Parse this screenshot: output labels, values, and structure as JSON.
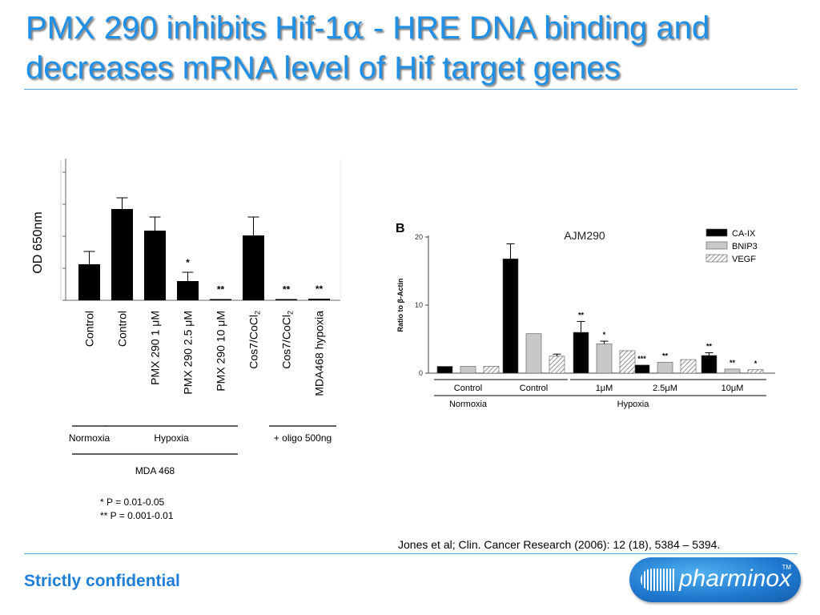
{
  "slide": {
    "title_part1": "PMX 290 inhibits Hif-1",
    "title_alpha": "α",
    "title_part2": " - HRE DNA binding and decreases mRNA level of Hif target genes",
    "citation": "Jones et al; Clin. Cancer Research (2006): 12 (18), 5384 – 5394.",
    "footer": "Strictly confidential",
    "logo_text": "pharminox",
    "logo_tm": "TM",
    "colors": {
      "title": "#1e90e8",
      "footer": "#1e7ed8",
      "rule": "#5aa9e6",
      "bar": "#000000"
    }
  },
  "chart_data": [
    {
      "type": "bar",
      "ylabel": "OD 650nm",
      "ylim": [
        0,
        1.6
      ],
      "categories": [
        "Control",
        "Control",
        "PMX 290 1 μM",
        "PMX 290 2.5 μM",
        "PMX 290 10 μM",
        "Cos7/CoCl2",
        "Cos7/CoCl2",
        "MDA468 hypoxia"
      ],
      "values": [
        0.45,
        1.14,
        0.87,
        0.24,
        0.01,
        0.81,
        0.005,
        0.02
      ],
      "errors": [
        0.16,
        0.14,
        0.17,
        0.11,
        0,
        0.23,
        0,
        0
      ],
      "significance": [
        "",
        "",
        "",
        "*",
        "**",
        "",
        "**",
        "**"
      ],
      "groups": [
        {
          "label": "Normoxia",
          "members": [
            0
          ]
        },
        {
          "label": "Hypoxia",
          "members": [
            1,
            2,
            3,
            4
          ]
        },
        {
          "label": "+ oligo 500ng",
          "members": [
            6,
            7
          ]
        }
      ],
      "supergroup": {
        "label": "MDA 468",
        "members": [
          0,
          1,
          2,
          3,
          4
        ]
      },
      "pvalue_notes": [
        "*    P = 0.01-0.05",
        "**  P = 0.001-0.01"
      ]
    },
    {
      "type": "bar",
      "panel_label": "B",
      "title": "AJM290",
      "ylabel": "Ratio to β-Actin",
      "ylim": [
        0,
        20
      ],
      "yticks": [
        0,
        10,
        20
      ],
      "groups": [
        "Control",
        "Control",
        "1μM",
        "2.5μM",
        "10μM"
      ],
      "supergroups": [
        {
          "label": "Normoxia",
          "members": [
            0
          ]
        },
        {
          "label": "Hypoxia",
          "members": [
            1,
            2,
            3,
            4
          ]
        }
      ],
      "series": [
        {
          "name": "CA-IX",
          "values": [
            1.0,
            16.8,
            6.0,
            1.2,
            2.6
          ],
          "errors": [
            0,
            2.2,
            1.6,
            0,
            0.4
          ],
          "significance": [
            "",
            "",
            "**",
            "***",
            "**"
          ]
        },
        {
          "name": "BNIP3",
          "values": [
            1.0,
            5.8,
            4.3,
            1.6,
            0.6
          ],
          "errors": [
            0,
            0,
            0.4,
            0,
            0
          ],
          "significance": [
            "",
            "",
            "*",
            "**",
            "**"
          ]
        },
        {
          "name": "VEGF",
          "values": [
            1.0,
            2.5,
            3.3,
            2.0,
            0.5
          ],
          "errors": [
            0,
            0.3,
            0,
            0,
            0
          ],
          "significance": [
            "",
            "",
            "",
            "",
            "*"
          ]
        }
      ],
      "legend_position": "top-right"
    }
  ]
}
